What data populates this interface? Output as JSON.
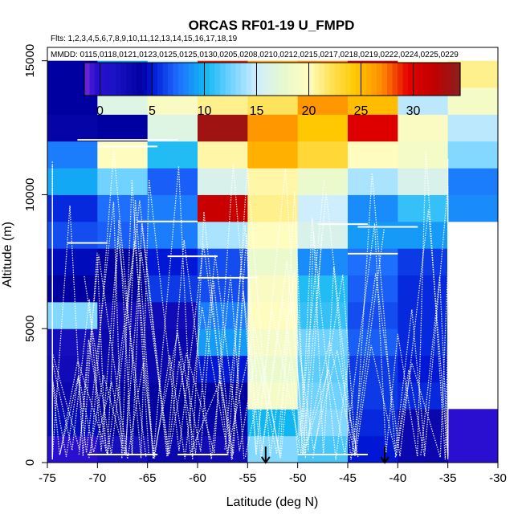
{
  "chart_data": {
    "type": "heatmap",
    "title": "ORCAS RF01-19 U_FMPD",
    "flights_note": "Flts: 1,2,3,4,5,6,7,8,9,10,11,12,13,14,15,16,17,18,19",
    "mmdd_note": "MMDD: 0115,0118,0121,0123,0125,0125,0130,0205,0208,0210,0212,0215,0217,0218,0219,0222,0224,0225,0229",
    "xlabel": "Latitude (deg N)",
    "ylabel": "Altitude (m)",
    "xlim": [
      -75,
      -30
    ],
    "ylim": [
      0,
      15500
    ],
    "x_ticks": [
      -75,
      -70,
      -65,
      -60,
      -55,
      -50,
      -45,
      -40,
      -35,
      -30
    ],
    "y_ticks": [
      0,
      5000,
      10000,
      15000
    ],
    "x_bin_edges": [
      -75,
      -70,
      -65,
      -60,
      -55,
      -50,
      -45,
      -40,
      -35,
      -30
    ],
    "y_bin_size": 1000,
    "colorbar": {
      "range": [
        -1.5,
        34.5
      ],
      "ticks": [
        0,
        5,
        10,
        15,
        20,
        25,
        30
      ],
      "stops": [
        [
          -1.5,
          "#7b2bd9"
        ],
        [
          -0.5,
          "#2a0fd0"
        ],
        [
          1.5,
          "#1a12c4"
        ],
        [
          4.0,
          "#0000a0"
        ],
        [
          5.0,
          "#0018d6"
        ],
        [
          7.5,
          "#1f6fff"
        ],
        [
          10.0,
          "#0fb6f2"
        ],
        [
          12.5,
          "#6fd2ff"
        ],
        [
          15.0,
          "#cfeefd"
        ],
        [
          17.5,
          "#e6f9d0"
        ],
        [
          20.0,
          "#fffcc0"
        ],
        [
          22.0,
          "#ffe35c"
        ],
        [
          24.5,
          "#ffc800"
        ],
        [
          27.0,
          "#ff8c00"
        ],
        [
          29.5,
          "#e60000"
        ],
        [
          32.0,
          "#c00000"
        ],
        [
          34.5,
          "#8a2020"
        ]
      ]
    },
    "grid": [
      [
        -0.5,
        2.0,
        3.0,
        2.5,
        13.0,
        11.5,
        5.0,
        3.0,
        -0.5
      ],
      [
        4.5,
        4.0,
        4.0,
        3.5,
        10.0,
        13.0,
        5.5,
        3.0,
        -0.5
      ],
      [
        3.0,
        4.0,
        4.0,
        4.0,
        19.0,
        12.5,
        6.0,
        5.5,
        null
      ],
      [
        2.5,
        3.0,
        3.0,
        5.0,
        18.0,
        12.0,
        6.0,
        5.0,
        null
      ],
      [
        2.0,
        3.0,
        3.0,
        9.0,
        19.0,
        12.5,
        7.0,
        5.5,
        null
      ],
      [
        13.0,
        2.5,
        2.5,
        8.0,
        20.0,
        11.0,
        6.5,
        5.5,
        null
      ],
      [
        4.0,
        4.0,
        6.0,
        6.5,
        19.5,
        10.5,
        7.0,
        5.5,
        null
      ],
      [
        4.5,
        4.0,
        5.0,
        6.5,
        18.0,
        8.5,
        7.5,
        6.0,
        null
      ],
      [
        6.5,
        7.0,
        8.0,
        14.0,
        20.0,
        16.0,
        9.0,
        9.0,
        null
      ],
      [
        5.5,
        7.5,
        8.0,
        31.5,
        21.0,
        15.0,
        8.5,
        11.0,
        8.5
      ],
      [
        9.5,
        12.5,
        7.0,
        16.0,
        20.5,
        18.0,
        14.0,
        16.0,
        8.0
      ],
      [
        8.0,
        20.0,
        10.5,
        20.5,
        25.5,
        23.0,
        20.0,
        19.0,
        13.0
      ],
      [
        3.5,
        4.0,
        16.5,
        33.5,
        26.5,
        24.5,
        30.0,
        19.5,
        14.5
      ],
      [
        4.0,
        16.5,
        19.5,
        21.0,
        22.0,
        26.5,
        25.0,
        14.5,
        19.0
      ],
      [
        4.0,
        9.0,
        14.5,
        29.0,
        26.0,
        27.0,
        30.0,
        20.0,
        21.0
      ]
    ],
    "arrows_at_latitude": [
      -53.2,
      -41.3
    ]
  }
}
